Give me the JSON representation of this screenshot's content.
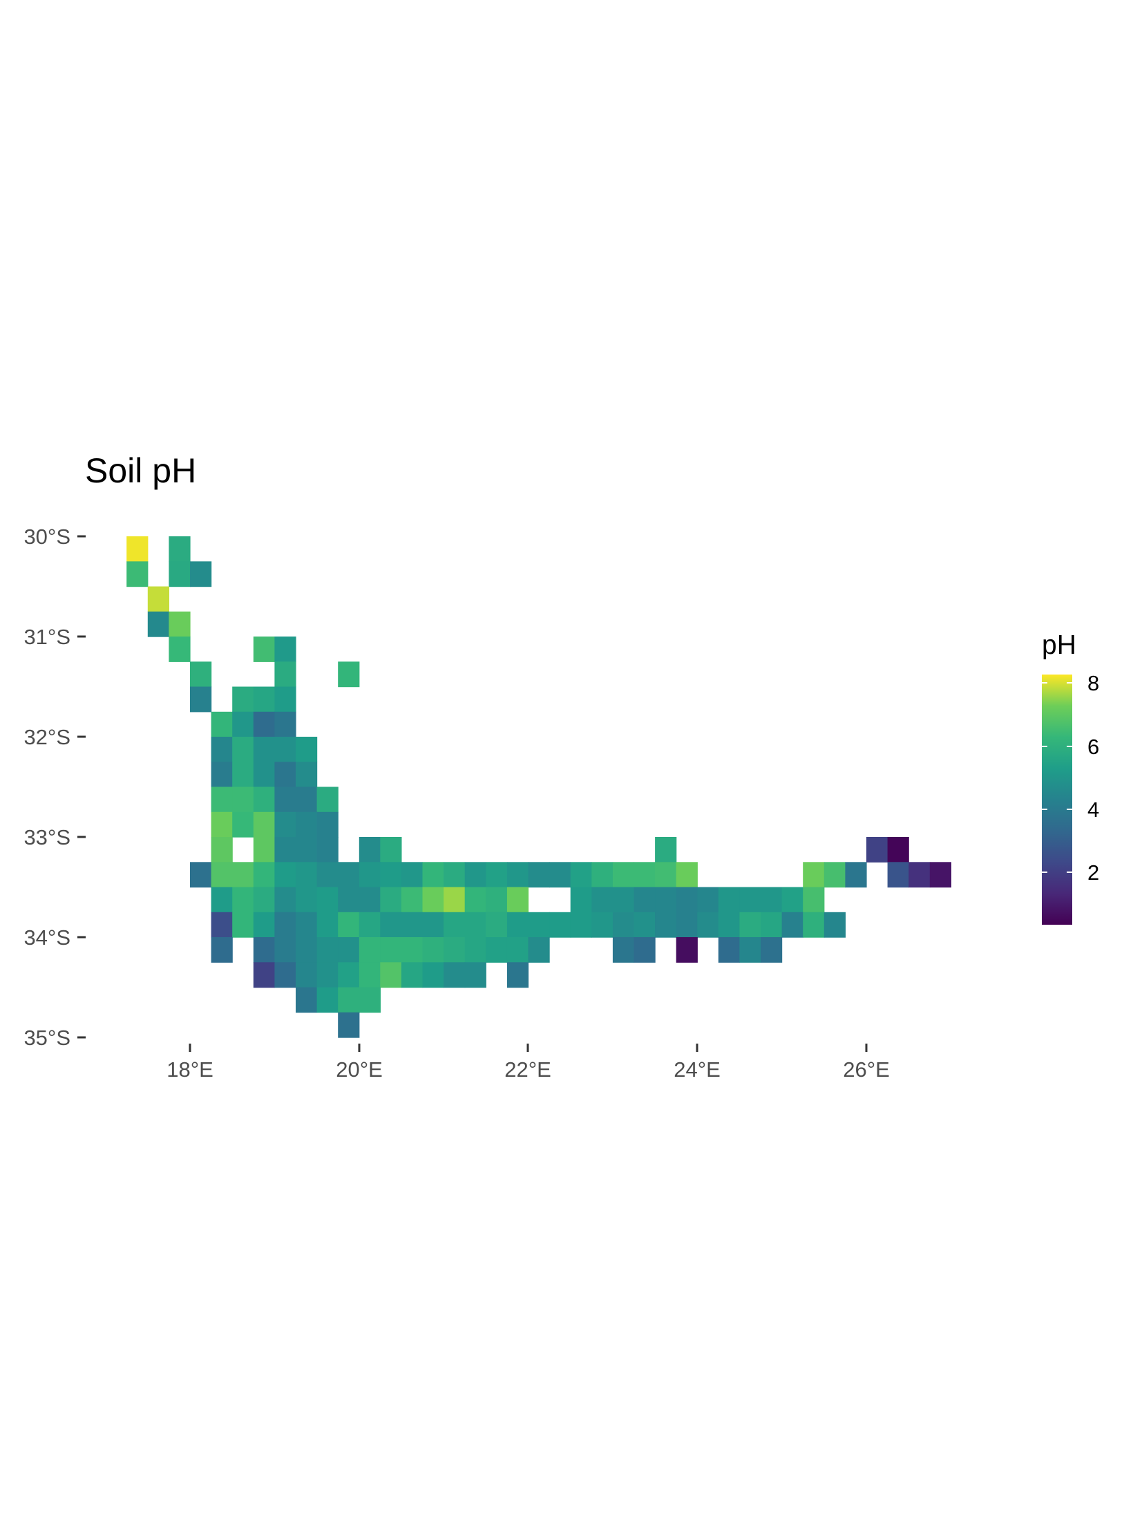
{
  "title": "Soil pH",
  "legend": {
    "title": "pH",
    "ticks": [
      "8",
      "6",
      "4",
      "2"
    ],
    "min": 0.2,
    "max": 8.3
  },
  "axes": {
    "y_ticks": [
      "30°S",
      "31°S",
      "32°S",
      "33°S",
      "34°S",
      "35°S"
    ],
    "x_ticks": [
      "18°E",
      "20°E",
      "22°E",
      "24°E",
      "26°E"
    ]
  },
  "colors": {
    "low": "#440154",
    "mid": "#21918c",
    "high": "#fde725"
  },
  "chart_data": {
    "type": "heatmap",
    "title": "Soil pH",
    "xlabel": "",
    "ylabel": "",
    "x_ticks": [
      "18°E",
      "20°E",
      "22°E",
      "24°E",
      "26°E"
    ],
    "y_ticks": [
      "30°S",
      "31°S",
      "32°S",
      "33°S",
      "34°S",
      "35°S"
    ],
    "xlim": [
      17.25,
      27.0
    ],
    "ylim": [
      -35.0,
      -29.85
    ],
    "grid": false,
    "legend_position": "right",
    "cell_size_deg": 0.25,
    "value_label": "pH",
    "color_range": [
      0.2,
      8.3
    ],
    "cells": [
      [
        17.375,
        -30.125,
        8.2
      ],
      [
        17.875,
        -30.125,
        5.8
      ],
      [
        17.375,
        -30.375,
        6.4
      ],
      [
        17.875,
        -30.375,
        5.7
      ],
      [
        18.125,
        -30.375,
        4.6
      ],
      [
        17.625,
        -30.625,
        7.9
      ],
      [
        17.625,
        -30.875,
        4.5
      ],
      [
        17.875,
        -30.875,
        7.2
      ],
      [
        17.875,
        -31.125,
        6.3
      ],
      [
        18.875,
        -31.125,
        6.5
      ],
      [
        19.125,
        -31.125,
        5.1
      ],
      [
        18.125,
        -31.375,
        6.0
      ],
      [
        19.125,
        -31.375,
        5.8
      ],
      [
        19.875,
        -31.375,
        6.2
      ],
      [
        18.125,
        -31.625,
        4.2
      ],
      [
        18.625,
        -31.625,
        5.8
      ],
      [
        18.875,
        -31.625,
        5.6
      ],
      [
        19.125,
        -31.625,
        5.2
      ],
      [
        18.375,
        -31.875,
        6.2
      ],
      [
        18.625,
        -31.875,
        5.0
      ],
      [
        18.875,
        -31.875,
        3.4
      ],
      [
        19.125,
        -31.875,
        3.8
      ],
      [
        18.375,
        -32.125,
        4.4
      ],
      [
        18.625,
        -32.125,
        5.8
      ],
      [
        18.875,
        -32.125,
        4.8
      ],
      [
        19.125,
        -32.125,
        4.8
      ],
      [
        19.375,
        -32.125,
        5.2
      ],
      [
        18.375,
        -32.375,
        4.0
      ],
      [
        18.625,
        -32.375,
        5.8
      ],
      [
        18.875,
        -32.375,
        4.8
      ],
      [
        19.125,
        -32.375,
        3.8
      ],
      [
        19.375,
        -32.375,
        4.6
      ],
      [
        18.375,
        -32.625,
        6.4
      ],
      [
        18.625,
        -32.625,
        6.4
      ],
      [
        18.875,
        -32.625,
        6.0
      ],
      [
        19.125,
        -32.625,
        4.0
      ],
      [
        19.375,
        -32.625,
        4.0
      ],
      [
        19.625,
        -32.625,
        5.8
      ],
      [
        18.375,
        -32.875,
        7.2
      ],
      [
        18.625,
        -32.875,
        6.3
      ],
      [
        18.875,
        -32.875,
        7.0
      ],
      [
        19.125,
        -32.875,
        4.6
      ],
      [
        19.375,
        -32.875,
        4.4
      ],
      [
        19.625,
        -32.875,
        4.2
      ],
      [
        18.375,
        -33.125,
        7.0
      ],
      [
        18.875,
        -33.125,
        7.0
      ],
      [
        19.125,
        -33.125,
        4.4
      ],
      [
        19.375,
        -33.125,
        4.4
      ],
      [
        19.625,
        -33.125,
        4.2
      ],
      [
        20.125,
        -33.125,
        4.6
      ],
      [
        20.375,
        -33.125,
        5.8
      ],
      [
        23.625,
        -33.125,
        5.8
      ],
      [
        26.125,
        -33.125,
        2.0
      ],
      [
        26.375,
        -33.125,
        0.3
      ],
      [
        18.125,
        -33.375,
        3.6
      ],
      [
        18.375,
        -33.375,
        6.8
      ],
      [
        18.625,
        -33.375,
        6.8
      ],
      [
        18.875,
        -33.375,
        6.2
      ],
      [
        19.125,
        -33.375,
        5.2
      ],
      [
        19.375,
        -33.375,
        5.0
      ],
      [
        19.625,
        -33.375,
        4.6
      ],
      [
        19.875,
        -33.375,
        4.6
      ],
      [
        20.125,
        -33.375,
        5.0
      ],
      [
        20.375,
        -33.375,
        5.2
      ],
      [
        20.625,
        -33.375,
        5.0
      ],
      [
        20.875,
        -33.375,
        6.2
      ],
      [
        21.125,
        -33.375,
        5.8
      ],
      [
        21.375,
        -33.375,
        5.0
      ],
      [
        21.625,
        -33.375,
        5.4
      ],
      [
        21.875,
        -33.375,
        5.0
      ],
      [
        22.125,
        -33.375,
        4.6
      ],
      [
        22.375,
        -33.375,
        4.6
      ],
      [
        22.625,
        -33.375,
        5.4
      ],
      [
        22.875,
        -33.375,
        6.0
      ],
      [
        23.125,
        -33.375,
        6.4
      ],
      [
        23.375,
        -33.375,
        6.4
      ],
      [
        23.625,
        -33.375,
        6.5
      ],
      [
        23.875,
        -33.375,
        7.2
      ],
      [
        25.375,
        -33.375,
        7.2
      ],
      [
        25.625,
        -33.375,
        6.6
      ],
      [
        25.875,
        -33.375,
        3.8
      ],
      [
        26.375,
        -33.375,
        2.6
      ],
      [
        26.625,
        -33.375,
        1.5
      ],
      [
        26.875,
        -33.375,
        0.7
      ],
      [
        18.375,
        -33.625,
        5.2
      ],
      [
        18.625,
        -33.625,
        6.2
      ],
      [
        18.875,
        -33.625,
        5.8
      ],
      [
        19.125,
        -33.625,
        4.6
      ],
      [
        19.375,
        -33.625,
        5.0
      ],
      [
        19.625,
        -33.625,
        5.2
      ],
      [
        19.875,
        -33.625,
        4.6
      ],
      [
        20.125,
        -33.625,
        4.6
      ],
      [
        20.375,
        -33.625,
        5.8
      ],
      [
        20.625,
        -33.625,
        6.4
      ],
      [
        20.875,
        -33.625,
        7.2
      ],
      [
        21.125,
        -33.625,
        7.6
      ],
      [
        21.375,
        -33.625,
        6.2
      ],
      [
        21.625,
        -33.625,
        6.0
      ],
      [
        21.875,
        -33.625,
        7.2
      ],
      [
        22.625,
        -33.625,
        5.2
      ],
      [
        22.875,
        -33.625,
        4.8
      ],
      [
        23.125,
        -33.625,
        4.8
      ],
      [
        23.375,
        -33.625,
        4.4
      ],
      [
        23.625,
        -33.625,
        4.4
      ],
      [
        23.875,
        -33.625,
        4.2
      ],
      [
        24.125,
        -33.625,
        4.4
      ],
      [
        24.375,
        -33.625,
        5.0
      ],
      [
        24.625,
        -33.625,
        5.0
      ],
      [
        24.875,
        -33.625,
        5.0
      ],
      [
        25.125,
        -33.625,
        5.4
      ],
      [
        25.375,
        -33.625,
        6.6
      ],
      [
        18.375,
        -33.875,
        2.4
      ],
      [
        18.625,
        -33.875,
        6.2
      ],
      [
        18.875,
        -33.875,
        5.2
      ],
      [
        19.125,
        -33.875,
        4.0
      ],
      [
        19.375,
        -33.875,
        4.4
      ],
      [
        19.625,
        -33.875,
        5.2
      ],
      [
        19.875,
        -33.875,
        6.2
      ],
      [
        20.125,
        -33.875,
        5.6
      ],
      [
        20.375,
        -33.875,
        5.0
      ],
      [
        20.625,
        -33.875,
        5.0
      ],
      [
        20.875,
        -33.875,
        5.0
      ],
      [
        21.125,
        -33.875,
        5.6
      ],
      [
        21.375,
        -33.875,
        5.6
      ],
      [
        21.625,
        -33.875,
        5.8
      ],
      [
        21.875,
        -33.875,
        5.2
      ],
      [
        22.125,
        -33.875,
        5.2
      ],
      [
        22.375,
        -33.875,
        5.2
      ],
      [
        22.625,
        -33.875,
        5.2
      ],
      [
        22.875,
        -33.875,
        5.0
      ],
      [
        23.125,
        -33.875,
        4.6
      ],
      [
        23.375,
        -33.875,
        4.8
      ],
      [
        23.625,
        -33.875,
        4.4
      ],
      [
        23.875,
        -33.875,
        4.2
      ],
      [
        24.125,
        -33.875,
        4.6
      ],
      [
        24.375,
        -33.875,
        5.0
      ],
      [
        24.625,
        -33.875,
        5.8
      ],
      [
        24.875,
        -33.875,
        5.6
      ],
      [
        25.125,
        -33.875,
        4.2
      ],
      [
        25.375,
        -33.875,
        6.0
      ],
      [
        25.625,
        -33.875,
        4.4
      ],
      [
        18.375,
        -34.125,
        3.4
      ],
      [
        18.875,
        -34.125,
        3.4
      ],
      [
        19.125,
        -34.125,
        4.0
      ],
      [
        19.375,
        -34.125,
        4.4
      ],
      [
        19.625,
        -34.125,
        4.8
      ],
      [
        19.875,
        -34.125,
        4.8
      ],
      [
        20.125,
        -34.125,
        6.2
      ],
      [
        20.375,
        -34.125,
        6.2
      ],
      [
        20.625,
        -34.125,
        6.2
      ],
      [
        20.875,
        -34.125,
        6.0
      ],
      [
        21.125,
        -34.125,
        5.8
      ],
      [
        21.375,
        -34.125,
        5.6
      ],
      [
        21.625,
        -34.125,
        5.4
      ],
      [
        21.875,
        -34.125,
        5.4
      ],
      [
        22.125,
        -34.125,
        4.6
      ],
      [
        23.125,
        -34.125,
        3.8
      ],
      [
        23.375,
        -34.125,
        3.4
      ],
      [
        23.875,
        -34.125,
        0.5
      ],
      [
        24.375,
        -34.125,
        3.4
      ],
      [
        24.625,
        -34.125,
        4.4
      ],
      [
        24.875,
        -34.125,
        3.6
      ],
      [
        18.875,
        -34.375,
        2.0
      ],
      [
        19.125,
        -34.375,
        3.4
      ],
      [
        19.375,
        -34.375,
        4.4
      ],
      [
        19.625,
        -34.375,
        4.8
      ],
      [
        19.875,
        -34.375,
        5.4
      ],
      [
        20.125,
        -34.375,
        6.2
      ],
      [
        20.375,
        -34.375,
        6.8
      ],
      [
        20.625,
        -34.375,
        5.6
      ],
      [
        20.875,
        -34.375,
        5.2
      ],
      [
        21.125,
        -34.375,
        4.6
      ],
      [
        21.375,
        -34.375,
        4.6
      ],
      [
        21.875,
        -34.375,
        3.8
      ],
      [
        19.375,
        -34.625,
        3.8
      ],
      [
        19.625,
        -34.625,
        5.2
      ],
      [
        19.875,
        -34.625,
        6.0
      ],
      [
        20.125,
        -34.625,
        6.0
      ],
      [
        19.875,
        -34.875,
        3.6
      ]
    ]
  }
}
